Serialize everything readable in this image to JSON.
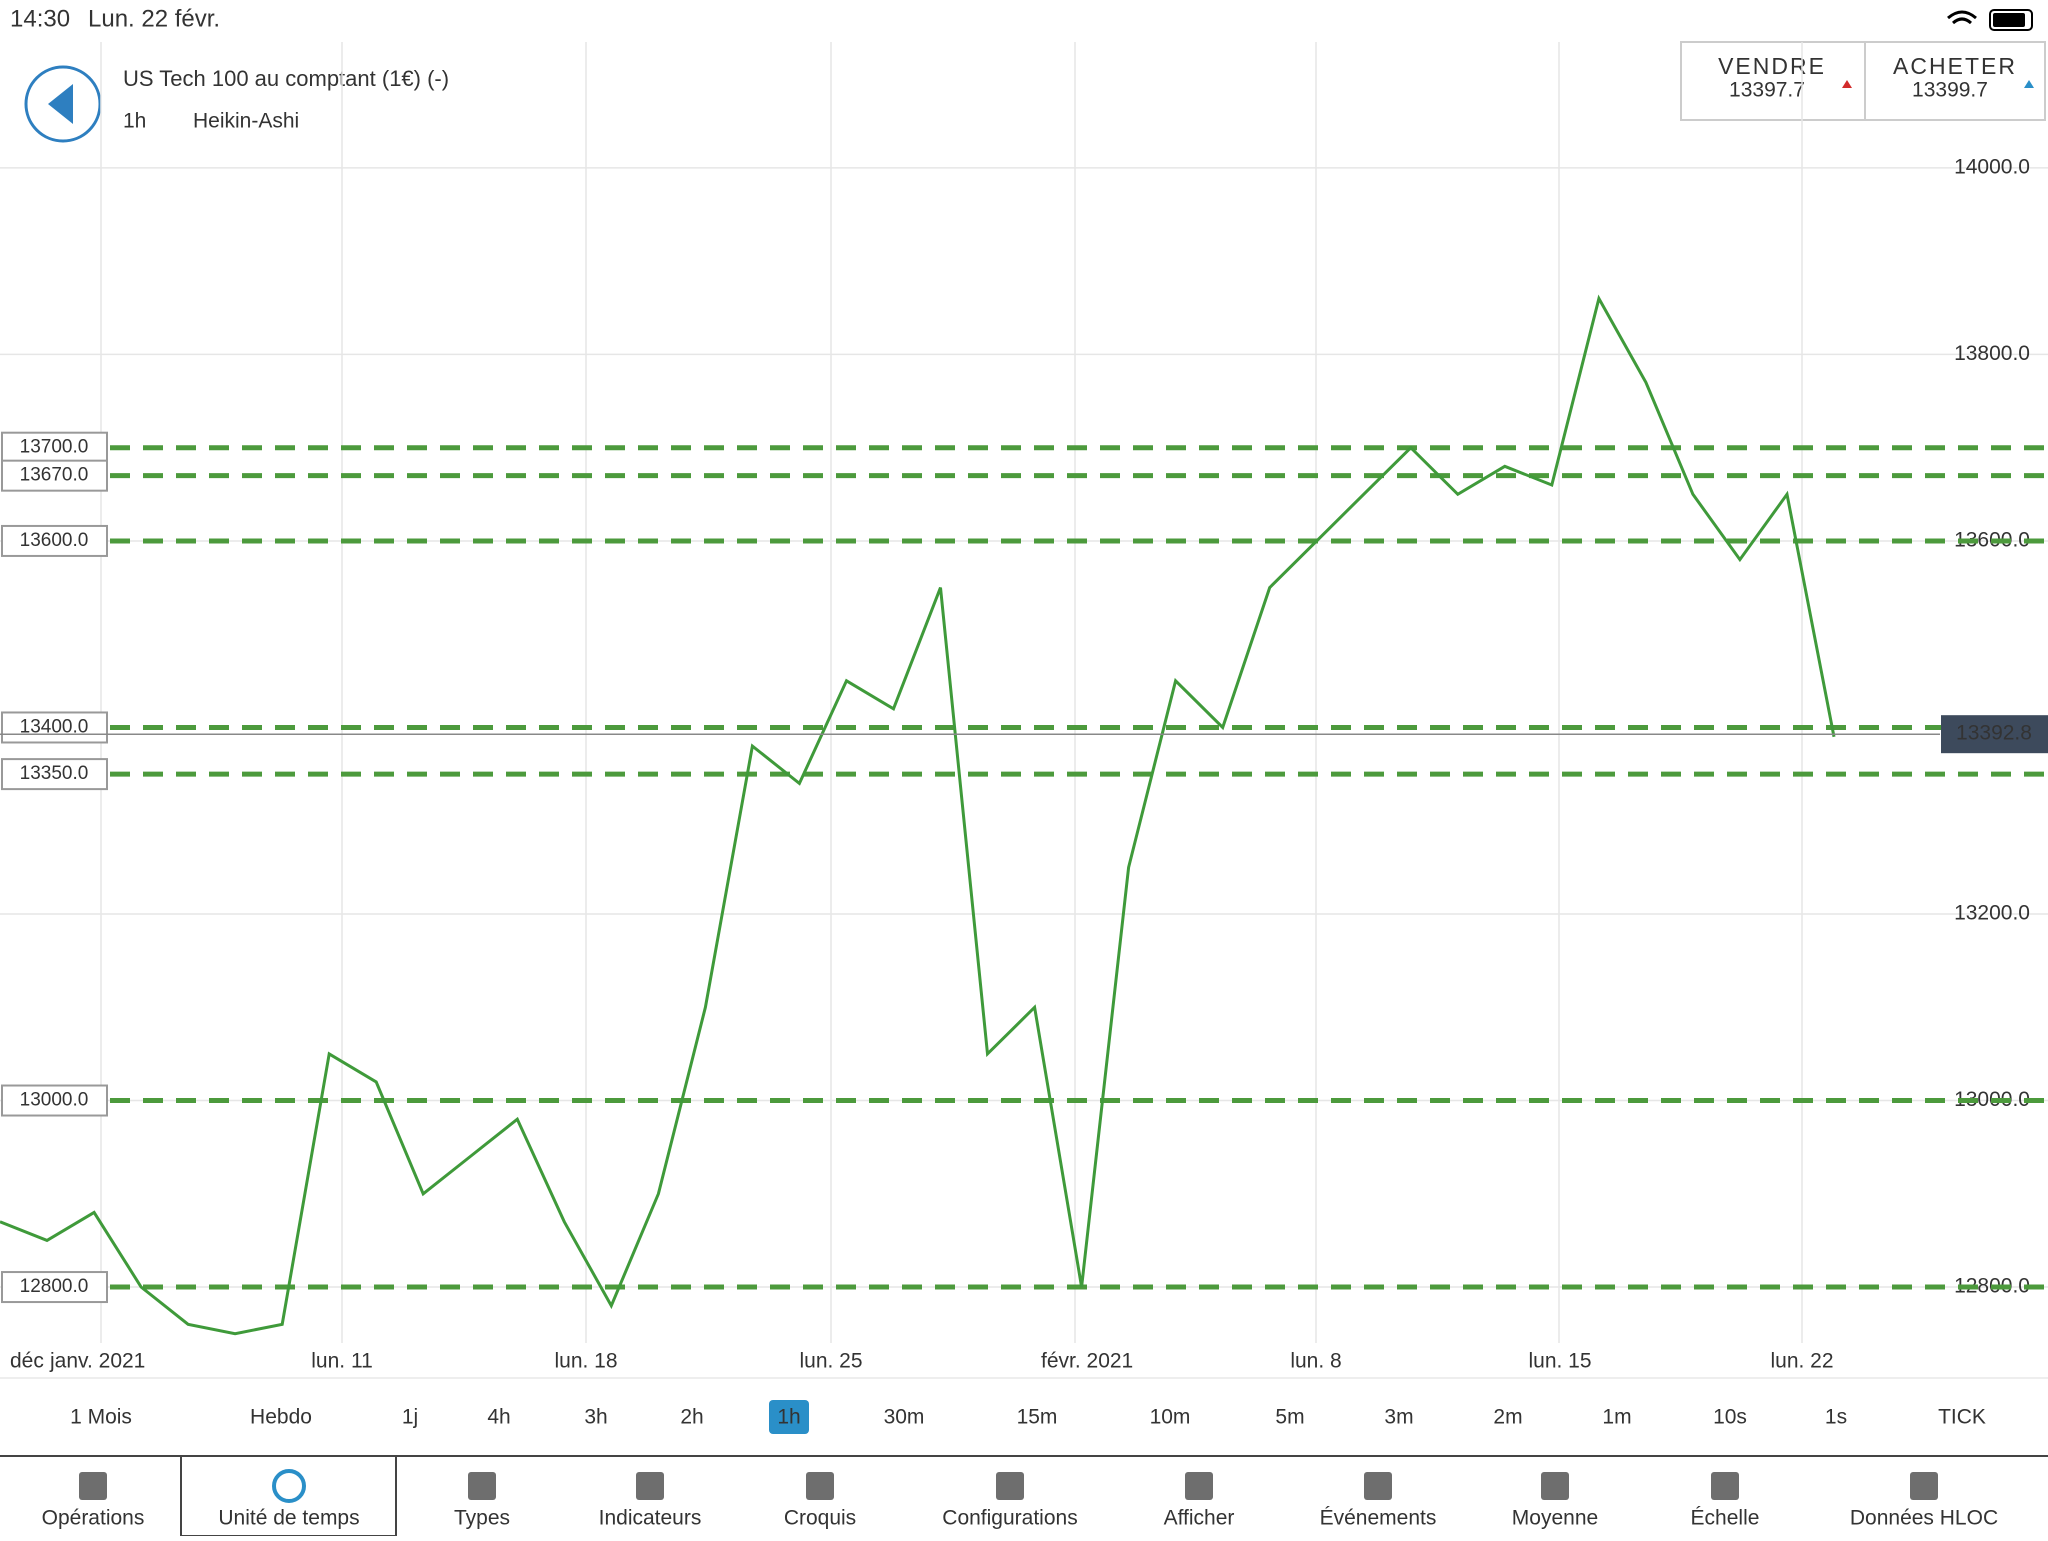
{
  "status_bar": {
    "time": "14:30",
    "date": "Lun. 22 févr."
  },
  "header": {
    "instrument": "US Tech 100 au comptant (1€) (-)",
    "timeframe": "1h",
    "chart_style": "Heikin-Ashi"
  },
  "quotes": {
    "sell_label": "VENDRE",
    "sell_price": "13397.7",
    "buy_label": "ACHETER",
    "buy_price": "13399.7"
  },
  "chart_data": {
    "type": "line",
    "values": [
      12870,
      12850,
      12880,
      12800,
      12760,
      12750,
      12760,
      13050,
      13020,
      12900,
      12940,
      12980,
      12870,
      12780,
      12900,
      13100,
      13380,
      13340,
      13450,
      13420,
      13550,
      13050,
      13100,
      12800,
      13250,
      13450,
      13400,
      13550,
      13600,
      13650,
      13700,
      13650,
      13680,
      13660,
      13860,
      13770,
      13650,
      13580,
      13650,
      13390
    ],
    "color": "#3f9a3a",
    "ylim": [
      12740,
      14135
    ],
    "yticks": [
      {
        "value": 14000,
        "label": "14000.0"
      },
      {
        "value": 13800,
        "label": "13800.0"
      },
      {
        "value": 13600,
        "label": "13600.0"
      },
      {
        "value": 13200,
        "label": "13200.0"
      },
      {
        "value": 13000,
        "label": "13000.0"
      },
      {
        "value": 12800,
        "label": "12800.0"
      }
    ],
    "grid": true,
    "levels": [
      {
        "value": 13700,
        "label": "13700.0"
      },
      {
        "value": 13670,
        "label": "13670.0"
      },
      {
        "value": 13600,
        "label": "13600.0"
      },
      {
        "value": 13400,
        "label": "13400.0"
      },
      {
        "value": 13350,
        "label": "13350.0"
      },
      {
        "value": 13000,
        "label": "13000.0"
      },
      {
        "value": 12800,
        "label": "12800.0"
      }
    ],
    "level_color": "#4c9a3c",
    "current_price": 13392.8,
    "xtick_labels": [
      "déc",
      "janv. 2021",
      "lun. 11",
      "lun. 18",
      "lun. 25",
      "févr. 2021",
      "lun. 8",
      "lun. 15",
      "lun. 22"
    ]
  },
  "timeframes": {
    "items": [
      "1 Mois",
      "Hebdo",
      "1j",
      "4h",
      "3h",
      "2h",
      "1h",
      "30m",
      "15m",
      "10m",
      "5m",
      "3m",
      "2m",
      "1m",
      "10s",
      "1s",
      "TICK"
    ],
    "active_index": 6
  },
  "toolbar": {
    "items": [
      "Opérations",
      "Unité de temps",
      "Types",
      "Indicateurs",
      "Croquis",
      "Configurations",
      "Afficher",
      "Événements",
      "Moyenne",
      "Échelle",
      "Données HLOC"
    ],
    "active_index": 1
  }
}
